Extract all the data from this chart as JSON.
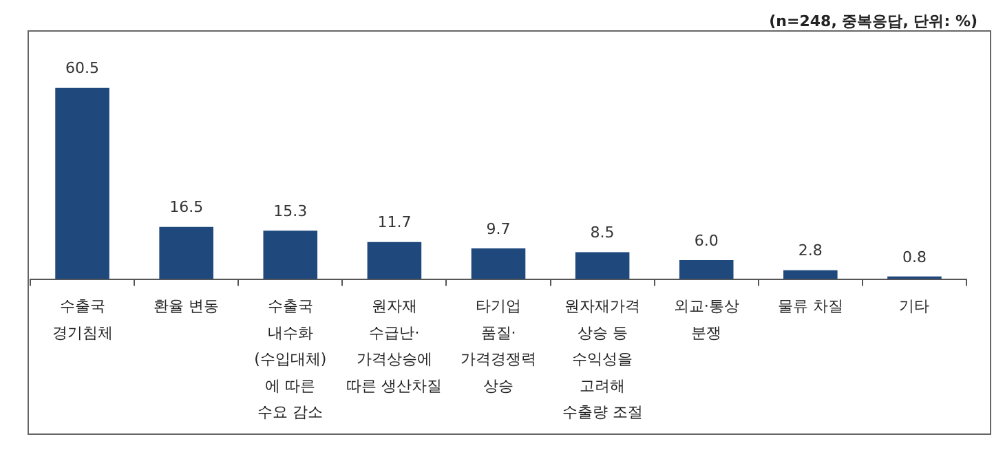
{
  "chart_data": {
    "type": "bar",
    "annotations": [
      "(n=248, 중복응답, 단위: %)"
    ],
    "categories": [
      "수출국\n경기침체",
      "환율 변동",
      "수출국\n내수화\n(수입대체)\n에 따른\n수요 감소",
      "원자재\n수급난·\n가격상승에\n따른 생산차질",
      "타기업\n품질·\n가격경쟁력\n상승",
      "원자재가격\n상승 등\n수익성을\n고려해\n수출량 조절",
      "외교·통상\n분쟁",
      "물류 차질",
      "기타"
    ],
    "values": [
      60.5,
      16.5,
      15.3,
      11.7,
      9.7,
      8.5,
      6.0,
      2.8,
      0.8
    ],
    "value_labels": [
      "60.5",
      "16.5",
      "15.3",
      "11.7",
      "9.7",
      "8.5",
      "6.0",
      "2.8",
      "0.8"
    ],
    "color": "#1f497d",
    "grid": false,
    "legend": false,
    "tick_labels": "x"
  }
}
